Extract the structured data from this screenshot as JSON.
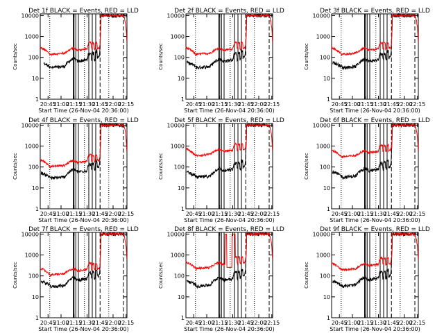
{
  "chart_data": {
    "type": "line",
    "title_suffix": "BLACK = Events, RED = LLD",
    "xlabel": "Start Time (26-Nov-04 20:36:00)",
    "ylabel": "Counts/sec",
    "y_scale": "log",
    "ylim": [
      1,
      12000
    ],
    "xlim": [
      0,
      100
    ],
    "x_ticks": [
      {
        "x": 9,
        "label": "20:45"
      },
      {
        "x": 24,
        "label": "21:00"
      },
      {
        "x": 39,
        "label": "21:15"
      },
      {
        "x": 54,
        "label": "21:30"
      },
      {
        "x": 69,
        "label": "21:45"
      },
      {
        "x": 84,
        "label": "22:00"
      },
      {
        "x": 99,
        "label": "22:15"
      }
    ],
    "y_ticks": [
      {
        "y": 1,
        "label": "1"
      },
      {
        "y": 10,
        "label": "10"
      },
      {
        "y": 100,
        "label": "100"
      },
      {
        "y": 1000,
        "label": "1000"
      },
      {
        "y": 10000,
        "label": "10000"
      }
    ],
    "colors": {
      "events": "#000000",
      "lld": "#ff0000"
    },
    "panels": [
      {
        "title": "Det 1f",
        "lld_scale": 1.0,
        "events_scale": 1.0,
        "events_start": 4,
        "spike": false
      },
      {
        "title": "Det 2f",
        "lld_scale": 1.0,
        "events_scale": 1.0,
        "events_start": 1,
        "spike": false
      },
      {
        "title": "Det 3f",
        "lld_scale": 1.0,
        "events_scale": 1.0,
        "events_start": 1,
        "spike": false
      },
      {
        "title": "Det 4f",
        "lld_scale": 0.75,
        "events_scale": 0.9,
        "events_start": 1,
        "spike": false
      },
      {
        "title": "Det 5f",
        "lld_scale": 2.5,
        "events_scale": 1.0,
        "events_start": 1,
        "spike": false
      },
      {
        "title": "Det 6f",
        "lld_scale": 2.2,
        "events_scale": 1.0,
        "events_start": 1,
        "spike": false
      },
      {
        "title": "Det 7f",
        "lld_scale": 0.8,
        "events_scale": 0.95,
        "events_start": 1,
        "spike": false
      },
      {
        "title": "Det 8f",
        "lld_scale": 1.6,
        "events_scale": 1.0,
        "events_start": 1,
        "spike": true
      },
      {
        "title": "Det 9f",
        "lld_scale": 1.4,
        "events_scale": 1.0,
        "events_start": 1,
        "spike": false
      }
    ]
  }
}
